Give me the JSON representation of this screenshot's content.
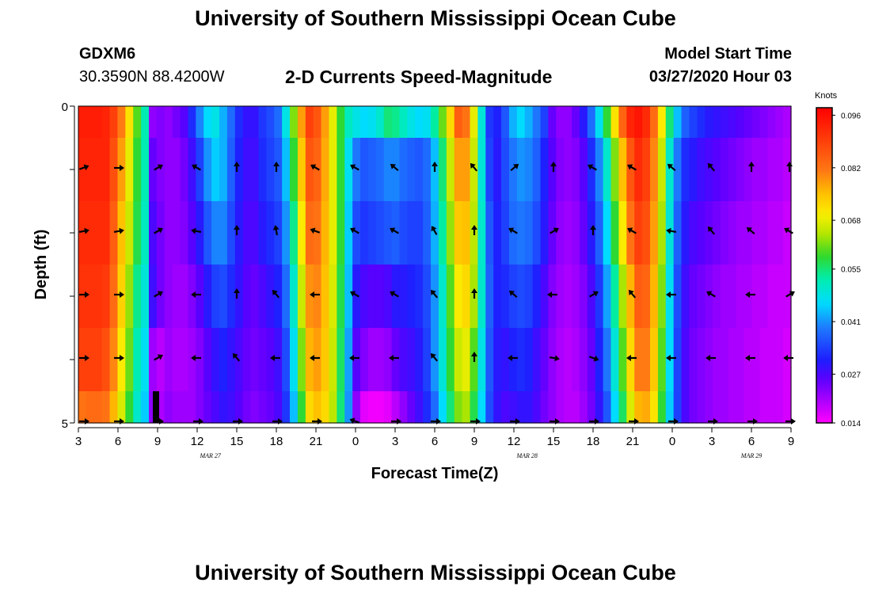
{
  "header": {
    "title": "University of Southern Mississippi Ocean Cube",
    "station_id": "GDXM6",
    "station_coords": "30.3590N 88.4200W",
    "chart_title": "2-D Currents Speed-Magnitude",
    "start_label": "Model Start Time",
    "start_value": "03/27/2020 Hour 03"
  },
  "footer": {
    "title": "University of Southern Mississippi Ocean Cube"
  },
  "chart_data": {
    "type": "heatmap",
    "title": "2-D Currents Speed-Magnitude",
    "xlabel": "Forecast Time(Z)",
    "ylabel": "Depth (ft)",
    "ylim": [
      0,
      5
    ],
    "y_tick_labels": [
      "0",
      "5"
    ],
    "x_tick_labels": [
      "3",
      "6",
      "9",
      "12",
      "15",
      "18",
      "21",
      "0",
      "3",
      "6",
      "9",
      "12",
      "15",
      "18",
      "21",
      "0",
      "3",
      "6",
      "9"
    ],
    "date_labels": [
      {
        "text": "MAR 27",
        "at_hour": 13
      },
      {
        "text": "MAR 28",
        "at_hour": 37
      },
      {
        "text": "MAR 29",
        "at_hour": 54
      }
    ],
    "colorbar": {
      "unit_label": "Knots",
      "ticks": [
        "0.096",
        "0.082",
        "0.068",
        "0.055",
        "0.041",
        "0.027",
        "0.014"
      ],
      "range": [
        0.014,
        0.098
      ]
    },
    "forecast_hours_start": 3,
    "forecast_hours_end": 57,
    "depth_layers_ft": [
      "0.0-0.5",
      "0.5-1.5",
      "1.5-2.5",
      "2.5-3.5",
      "3.5-4.5",
      "4.5-5.0"
    ],
    "speed_knots": [
      [
        0.094,
        0.094,
        0.094,
        0.093,
        0.089,
        0.081,
        0.071,
        0.06,
        0.052,
        0.022,
        0.023,
        0.022,
        0.024,
        0.026,
        0.032,
        0.04,
        0.046,
        0.048,
        0.043,
        0.038,
        0.032,
        0.029,
        0.029,
        0.033,
        0.035,
        0.038,
        0.048,
        0.062,
        0.078,
        0.089,
        0.086,
        0.078,
        0.068,
        0.058,
        0.051,
        0.048,
        0.046,
        0.047,
        0.05,
        0.055,
        0.054,
        0.051,
        0.048,
        0.046,
        0.047,
        0.053,
        0.061,
        0.072,
        0.085,
        0.082,
        0.068,
        0.049,
        0.033,
        0.031,
        0.036,
        0.043,
        0.046,
        0.043,
        0.039,
        0.034,
        0.025,
        0.022,
        0.022,
        0.025,
        0.03,
        0.038,
        0.047,
        0.058,
        0.071,
        0.084,
        0.093,
        0.095,
        0.092,
        0.083,
        0.07,
        0.055,
        0.044,
        0.037,
        0.034,
        0.032,
        0.03,
        0.029,
        0.028,
        0.027,
        0.026,
        0.025,
        0.024,
        0.023,
        0.022,
        0.021,
        0.02
      ],
      [
        0.093,
        0.093,
        0.093,
        0.093,
        0.087,
        0.078,
        0.068,
        0.058,
        0.052,
        0.025,
        0.023,
        0.022,
        0.022,
        0.024,
        0.028,
        0.034,
        0.041,
        0.045,
        0.043,
        0.037,
        0.031,
        0.028,
        0.028,
        0.032,
        0.034,
        0.036,
        0.044,
        0.058,
        0.074,
        0.086,
        0.084,
        0.077,
        0.068,
        0.058,
        0.047,
        0.039,
        0.036,
        0.037,
        0.038,
        0.04,
        0.04,
        0.038,
        0.037,
        0.036,
        0.038,
        0.044,
        0.055,
        0.066,
        0.078,
        0.078,
        0.066,
        0.049,
        0.034,
        0.03,
        0.035,
        0.039,
        0.041,
        0.04,
        0.037,
        0.031,
        0.026,
        0.023,
        0.022,
        0.023,
        0.026,
        0.032,
        0.04,
        0.05,
        0.062,
        0.075,
        0.086,
        0.092,
        0.089,
        0.08,
        0.066,
        0.05,
        0.039,
        0.032,
        0.03,
        0.028,
        0.027,
        0.026,
        0.025,
        0.024,
        0.023,
        0.022,
        0.021,
        0.021,
        0.02,
        0.02,
        0.019
      ],
      [
        0.092,
        0.092,
        0.092,
        0.092,
        0.085,
        0.075,
        0.066,
        0.057,
        0.051,
        0.027,
        0.024,
        0.022,
        0.022,
        0.023,
        0.026,
        0.03,
        0.036,
        0.04,
        0.04,
        0.035,
        0.03,
        0.027,
        0.027,
        0.03,
        0.032,
        0.034,
        0.041,
        0.054,
        0.07,
        0.083,
        0.082,
        0.076,
        0.068,
        0.058,
        0.045,
        0.035,
        0.033,
        0.034,
        0.035,
        0.036,
        0.037,
        0.035,
        0.034,
        0.034,
        0.037,
        0.043,
        0.053,
        0.063,
        0.074,
        0.075,
        0.065,
        0.05,
        0.036,
        0.031,
        0.034,
        0.038,
        0.039,
        0.038,
        0.035,
        0.03,
        0.025,
        0.022,
        0.021,
        0.022,
        0.025,
        0.03,
        0.037,
        0.046,
        0.058,
        0.07,
        0.082,
        0.089,
        0.087,
        0.078,
        0.064,
        0.049,
        0.037,
        0.03,
        0.027,
        0.026,
        0.025,
        0.024,
        0.023,
        0.022,
        0.021,
        0.021,
        0.02,
        0.02,
        0.019,
        0.019,
        0.018
      ],
      [
        0.091,
        0.091,
        0.091,
        0.09,
        0.083,
        0.073,
        0.063,
        0.054,
        0.049,
        0.028,
        0.024,
        0.022,
        0.021,
        0.021,
        0.023,
        0.026,
        0.03,
        0.034,
        0.035,
        0.032,
        0.029,
        0.026,
        0.025,
        0.027,
        0.029,
        0.031,
        0.038,
        0.05,
        0.066,
        0.079,
        0.08,
        0.075,
        0.067,
        0.057,
        0.044,
        0.03,
        0.027,
        0.026,
        0.026,
        0.027,
        0.03,
        0.03,
        0.031,
        0.032,
        0.035,
        0.041,
        0.05,
        0.06,
        0.07,
        0.072,
        0.064,
        0.05,
        0.037,
        0.031,
        0.032,
        0.034,
        0.035,
        0.034,
        0.031,
        0.027,
        0.023,
        0.021,
        0.02,
        0.021,
        0.023,
        0.027,
        0.033,
        0.042,
        0.053,
        0.064,
        0.076,
        0.085,
        0.084,
        0.076,
        0.062,
        0.047,
        0.035,
        0.028,
        0.025,
        0.024,
        0.023,
        0.022,
        0.021,
        0.021,
        0.02,
        0.02,
        0.019,
        0.019,
        0.018,
        0.018,
        0.018
      ],
      [
        0.089,
        0.089,
        0.089,
        0.087,
        0.08,
        0.07,
        0.061,
        0.052,
        0.047,
        0.021,
        0.019,
        0.021,
        0.02,
        0.02,
        0.021,
        0.023,
        0.026,
        0.029,
        0.031,
        0.029,
        0.027,
        0.025,
        0.024,
        0.025,
        0.026,
        0.028,
        0.035,
        0.047,
        0.062,
        0.076,
        0.078,
        0.074,
        0.066,
        0.056,
        0.042,
        0.026,
        0.023,
        0.021,
        0.021,
        0.022,
        0.025,
        0.027,
        0.028,
        0.03,
        0.034,
        0.041,
        0.049,
        0.058,
        0.066,
        0.068,
        0.06,
        0.048,
        0.036,
        0.03,
        0.029,
        0.031,
        0.032,
        0.031,
        0.028,
        0.025,
        0.022,
        0.02,
        0.019,
        0.02,
        0.022,
        0.025,
        0.031,
        0.039,
        0.049,
        0.06,
        0.072,
        0.081,
        0.081,
        0.074,
        0.06,
        0.046,
        0.034,
        0.027,
        0.024,
        0.023,
        0.022,
        0.021,
        0.021,
        0.02,
        0.02,
        0.019,
        0.019,
        0.018,
        0.018,
        0.018,
        0.017
      ],
      [
        0.082,
        0.083,
        0.083,
        0.082,
        0.076,
        0.067,
        0.058,
        0.05,
        0.045,
        0.022,
        0.02,
        0.022,
        0.021,
        0.021,
        0.021,
        0.023,
        0.025,
        0.027,
        0.029,
        0.028,
        0.026,
        0.024,
        0.023,
        0.024,
        0.025,
        0.027,
        0.033,
        0.044,
        0.058,
        0.072,
        0.075,
        0.072,
        0.065,
        0.055,
        0.041,
        0.022,
        0.016,
        0.015,
        0.015,
        0.016,
        0.019,
        0.022,
        0.025,
        0.028,
        0.032,
        0.038,
        0.046,
        0.055,
        0.062,
        0.064,
        0.057,
        0.046,
        0.035,
        0.029,
        0.027,
        0.028,
        0.029,
        0.029,
        0.027,
        0.024,
        0.022,
        0.02,
        0.019,
        0.019,
        0.021,
        0.024,
        0.029,
        0.036,
        0.046,
        0.056,
        0.067,
        0.076,
        0.077,
        0.071,
        0.058,
        0.045,
        0.034,
        0.027,
        0.024,
        0.023,
        0.022,
        0.021,
        0.021,
        0.02,
        0.02,
        0.019,
        0.019,
        0.018,
        0.018,
        0.018,
        0.017
      ]
    ],
    "no_data_cells": [
      {
        "layer": 5,
        "hour": 9
      }
    ],
    "vector_rows": [
      {
        "depth_ft": 1,
        "directions_deg": [
          70,
          90,
          60,
          300,
          0,
          0,
          300,
          300,
          310,
          0,
          320,
          50,
          0,
          300,
          300,
          310,
          320,
          0,
          0
        ]
      },
      {
        "depth_ft": 2,
        "directions_deg": [
          80,
          80,
          60,
          280,
          0,
          350,
          290,
          300,
          300,
          330,
          0,
          300,
          60,
          0,
          300,
          280,
          320,
          310,
          300
        ]
      },
      {
        "depth_ft": 3,
        "directions_deg": [
          90,
          90,
          60,
          270,
          0,
          320,
          270,
          300,
          300,
          320,
          0,
          310,
          270,
          60,
          320,
          270,
          300,
          270,
          60
        ]
      },
      {
        "depth_ft": 4,
        "directions_deg": [
          90,
          90,
          60,
          270,
          320,
          270,
          270,
          270,
          270,
          320,
          0,
          270,
          100,
          110,
          270,
          270,
          270,
          270,
          270
        ]
      },
      {
        "depth_ft": 5,
        "directions_deg": [
          90,
          90,
          90,
          90,
          90,
          90,
          90,
          290,
          90,
          90,
          90,
          90,
          90,
          90,
          90,
          90,
          90,
          90,
          90
        ]
      }
    ]
  }
}
